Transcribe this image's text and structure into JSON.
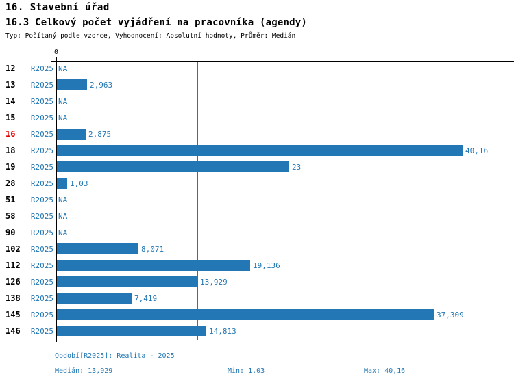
{
  "header": {
    "title": "16. Stavební úřad",
    "subtitle": "16.3 Celkový počet vyjádření na pracovníka (agendy)",
    "meta": "Typ: Počítaný podle vzorce, Vyhodnocení: Absolutní hodnoty, Průměr: Medián"
  },
  "chart_data": {
    "type": "bar",
    "orientation": "horizontal",
    "title": "16.3 Celkový počet vyjádření na pracovníka (agendy)",
    "axis_zero_label": "0",
    "series_label": "R2025",
    "categories": [
      "12",
      "13",
      "14",
      "15",
      "16",
      "18",
      "19",
      "28",
      "51",
      "58",
      "90",
      "102",
      "112",
      "126",
      "138",
      "145",
      "146"
    ],
    "values": [
      null,
      2.963,
      null,
      null,
      2.875,
      40.16,
      23,
      1.03,
      null,
      null,
      null,
      8.071,
      19.136,
      13.929,
      7.419,
      37.309,
      14.813
    ],
    "value_labels": [
      "NA",
      "2,963",
      "NA",
      "NA",
      "2,875",
      "40,16",
      "23",
      "1,03",
      "NA",
      "NA",
      "NA",
      "8,071",
      "19,136",
      "13,929",
      "7,419",
      "37,309",
      "14,813"
    ],
    "na_label": "NA",
    "highlighted_category": "16",
    "median_value": 13.929,
    "xlim": [
      0,
      45
    ],
    "grid": false,
    "legend_position": "none",
    "reference_line": "median"
  },
  "footer": {
    "period": "Období[R2025]: Realita - 2025",
    "median": "Medián: 13,929",
    "min": "Min: 1,03",
    "max": "Max: 40,16"
  },
  "colors": {
    "blue": "#2277B4",
    "red": "#E00000",
    "axis": "#000000",
    "background": "#FFFFFF"
  }
}
